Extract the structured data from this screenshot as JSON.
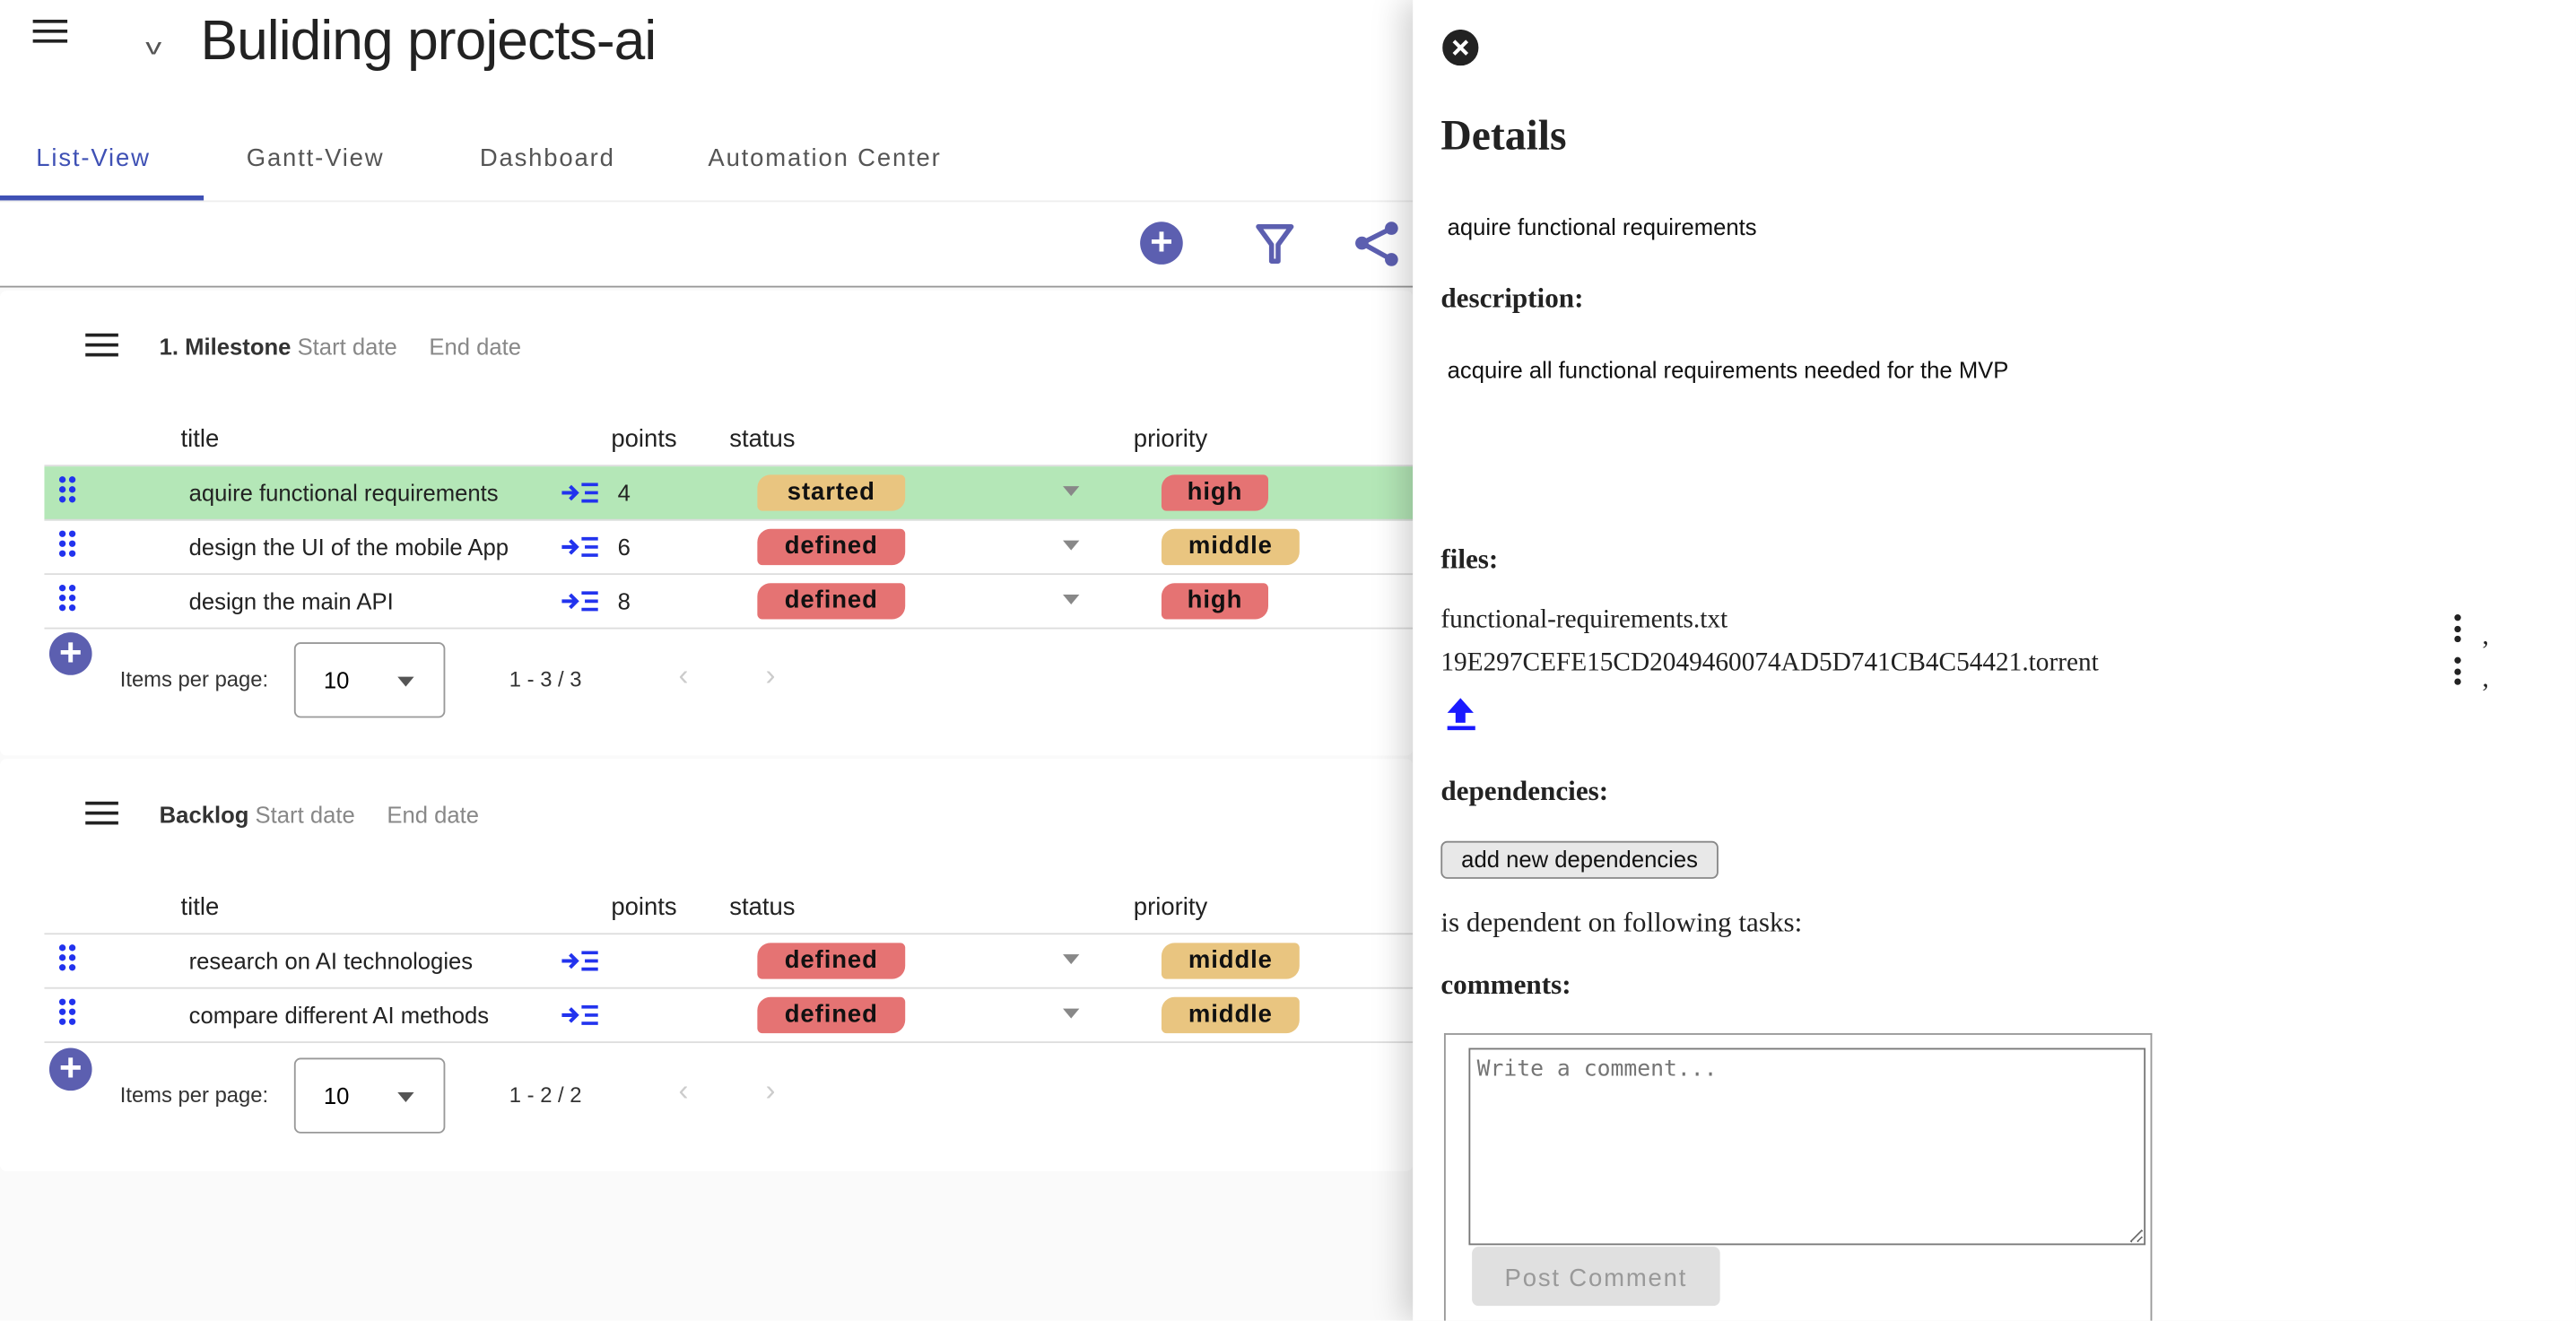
{
  "app": {
    "title": "Buliding projects-ai"
  },
  "tabs": [
    {
      "label": "List-View",
      "active": true
    },
    {
      "label": "Gantt-View"
    },
    {
      "label": "Dashboard"
    },
    {
      "label": "Automation Center"
    }
  ],
  "colors": {
    "accent": "#3f51b5",
    "selected_row": "#b4e7b7",
    "defined": "#e57373",
    "started": "#e9c580",
    "high": "#e57373",
    "middle": "#e9c580"
  },
  "columns": {
    "title": "title",
    "points": "points",
    "status": "status",
    "priority": "priority"
  },
  "groups": [
    {
      "name": "1. Milestone",
      "start_label": "Start date",
      "end_label": "End date",
      "rows": [
        {
          "title": "aquire functional requirements",
          "points": "4",
          "status": "started",
          "priority": "high",
          "selected": true
        },
        {
          "title": "design the UI of the mobile App",
          "points": "6",
          "status": "defined",
          "priority": "middle"
        },
        {
          "title": "design the main API",
          "points": "8",
          "status": "defined",
          "priority": "high"
        }
      ],
      "pagination": {
        "label": "Items per page:",
        "per_page": "10",
        "range": "1 - 3 / 3"
      }
    },
    {
      "name": "Backlog",
      "start_label": "Start date",
      "end_label": "End date",
      "rows": [
        {
          "title": "research on AI technologies",
          "points": "",
          "status": "defined",
          "priority": "middle"
        },
        {
          "title": "compare different AI methods",
          "points": "",
          "status": "defined",
          "priority": "middle"
        }
      ],
      "pagination": {
        "label": "Items per page:",
        "per_page": "10",
        "range": "1 - 2 / 2"
      }
    }
  ],
  "details": {
    "heading": "Details",
    "task_title": "aquire functional requirements",
    "description_label": "description:",
    "description": "acquire all functional requirements needed for the MVP",
    "files_label": "files:",
    "files": [
      "functional-requirements.txt",
      "19E297CEFE15CD2049460074AD5D741CB4C54421.torrent"
    ],
    "file_sep": ",",
    "dependencies_label": "dependencies:",
    "add_dependency_button": "add new dependencies",
    "dependent_text": "is dependent on following tasks:",
    "comments_label": "comments:",
    "comment_placeholder": "Write a comment...",
    "post_button": "Post Comment"
  }
}
